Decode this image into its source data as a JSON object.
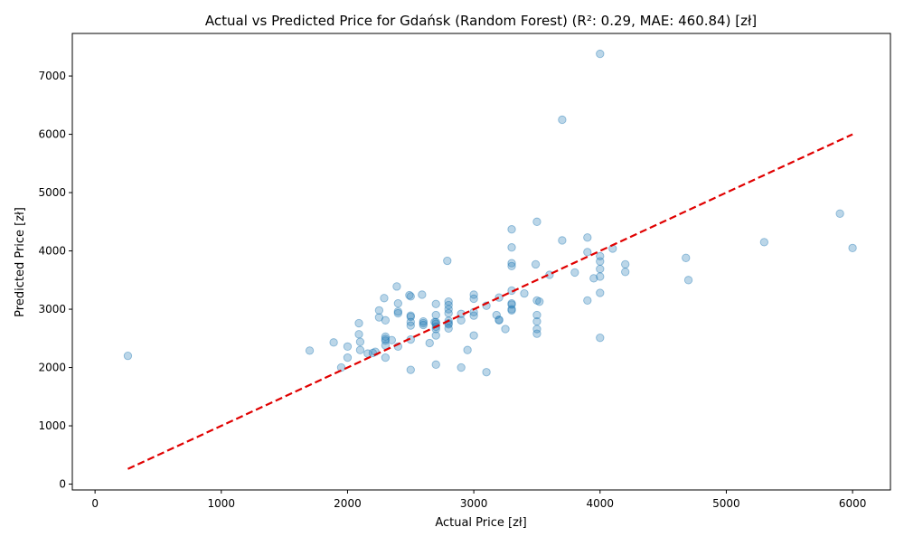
{
  "chart_data": {
    "type": "scatter",
    "title": "Actual vs Predicted Price for Gdańsk (Random Forest) (R²: 0.29, MAE: 460.84) [zł]",
    "xlabel": "Actual Price [zł]",
    "ylabel": "Predicted Price [zł]",
    "xlim": [
      -180,
      6300
    ],
    "ylim": [
      -100,
      7730
    ],
    "xticks": [
      0,
      1000,
      2000,
      3000,
      4000,
      5000,
      6000
    ],
    "yticks": [
      0,
      1000,
      2000,
      3000,
      4000,
      5000,
      6000,
      7000
    ],
    "grid": false,
    "colors": {
      "points": "#1f77b4",
      "reference_line": "#e00000"
    },
    "reference_line": {
      "style": "dashed",
      "from": [
        260,
        260
      ],
      "to": [
        6000,
        6000
      ]
    },
    "series": [
      {
        "points": [
          [
            260,
            2200
          ],
          [
            1700,
            2290
          ],
          [
            1890,
            2430
          ],
          [
            1950,
            2000
          ],
          [
            2000,
            2360
          ],
          [
            2000,
            2170
          ],
          [
            2090,
            2760
          ],
          [
            2090,
            2570
          ],
          [
            2100,
            2440
          ],
          [
            2100,
            2300
          ],
          [
            2160,
            2240
          ],
          [
            2200,
            2250
          ],
          [
            2220,
            2270
          ],
          [
            2250,
            2980
          ],
          [
            2250,
            2860
          ],
          [
            2290,
            3190
          ],
          [
            2300,
            2810
          ],
          [
            2300,
            2530
          ],
          [
            2300,
            2490
          ],
          [
            2300,
            2460
          ],
          [
            2300,
            2380
          ],
          [
            2300,
            2170
          ],
          [
            2350,
            2470
          ],
          [
            2390,
            3390
          ],
          [
            2400,
            3100
          ],
          [
            2400,
            2960
          ],
          [
            2400,
            2930
          ],
          [
            2400,
            2360
          ],
          [
            2490,
            3240
          ],
          [
            2500,
            3220
          ],
          [
            2500,
            2890
          ],
          [
            2500,
            2870
          ],
          [
            2500,
            2780
          ],
          [
            2500,
            2720
          ],
          [
            2500,
            2480
          ],
          [
            2500,
            1960
          ],
          [
            2590,
            3250
          ],
          [
            2600,
            2790
          ],
          [
            2600,
            2760
          ],
          [
            2600,
            2730
          ],
          [
            2650,
            2420
          ],
          [
            2690,
            2780
          ],
          [
            2700,
            3090
          ],
          [
            2700,
            2900
          ],
          [
            2700,
            2780
          ],
          [
            2700,
            2750
          ],
          [
            2700,
            2700
          ],
          [
            2700,
            2660
          ],
          [
            2700,
            2550
          ],
          [
            2700,
            2050
          ],
          [
            2790,
            3830
          ],
          [
            2800,
            3130
          ],
          [
            2800,
            3070
          ],
          [
            2800,
            3000
          ],
          [
            2800,
            2930
          ],
          [
            2800,
            2800
          ],
          [
            2800,
            2760
          ],
          [
            2800,
            2740
          ],
          [
            2800,
            2670
          ],
          [
            2900,
            2920
          ],
          [
            2900,
            2810
          ],
          [
            2900,
            2000
          ],
          [
            2950,
            2300
          ],
          [
            3000,
            3250
          ],
          [
            3000,
            3180
          ],
          [
            3000,
            2950
          ],
          [
            3000,
            2890
          ],
          [
            3000,
            2550
          ],
          [
            3100,
            1920
          ],
          [
            3100,
            3060
          ],
          [
            3180,
            2900
          ],
          [
            3200,
            3200
          ],
          [
            3200,
            2820
          ],
          [
            3200,
            2810
          ],
          [
            3250,
            2660
          ],
          [
            3300,
            4370
          ],
          [
            3300,
            4060
          ],
          [
            3300,
            3790
          ],
          [
            3300,
            3740
          ],
          [
            3300,
            3320
          ],
          [
            3300,
            3100
          ],
          [
            3300,
            3080
          ],
          [
            3300,
            3000
          ],
          [
            3300,
            2980
          ],
          [
            3400,
            3270
          ],
          [
            3490,
            3770
          ],
          [
            3500,
            4500
          ],
          [
            3500,
            3150
          ],
          [
            3500,
            2900
          ],
          [
            3500,
            2790
          ],
          [
            3500,
            2660
          ],
          [
            3500,
            2580
          ],
          [
            3520,
            3130
          ],
          [
            3600,
            3590
          ],
          [
            3700,
            6250
          ],
          [
            3700,
            4180
          ],
          [
            3800,
            3630
          ],
          [
            3900,
            4230
          ],
          [
            3900,
            3980
          ],
          [
            3900,
            3150
          ],
          [
            3950,
            3530
          ],
          [
            4000,
            7380
          ],
          [
            4000,
            3910
          ],
          [
            4000,
            3820
          ],
          [
            4000,
            3690
          ],
          [
            4000,
            3560
          ],
          [
            4000,
            3280
          ],
          [
            4000,
            2510
          ],
          [
            4100,
            4040
          ],
          [
            4200,
            3770
          ],
          [
            4200,
            3640
          ],
          [
            4680,
            3880
          ],
          [
            4700,
            3500
          ],
          [
            5300,
            4150
          ],
          [
            5900,
            4640
          ],
          [
            6000,
            4050
          ]
        ]
      }
    ]
  }
}
